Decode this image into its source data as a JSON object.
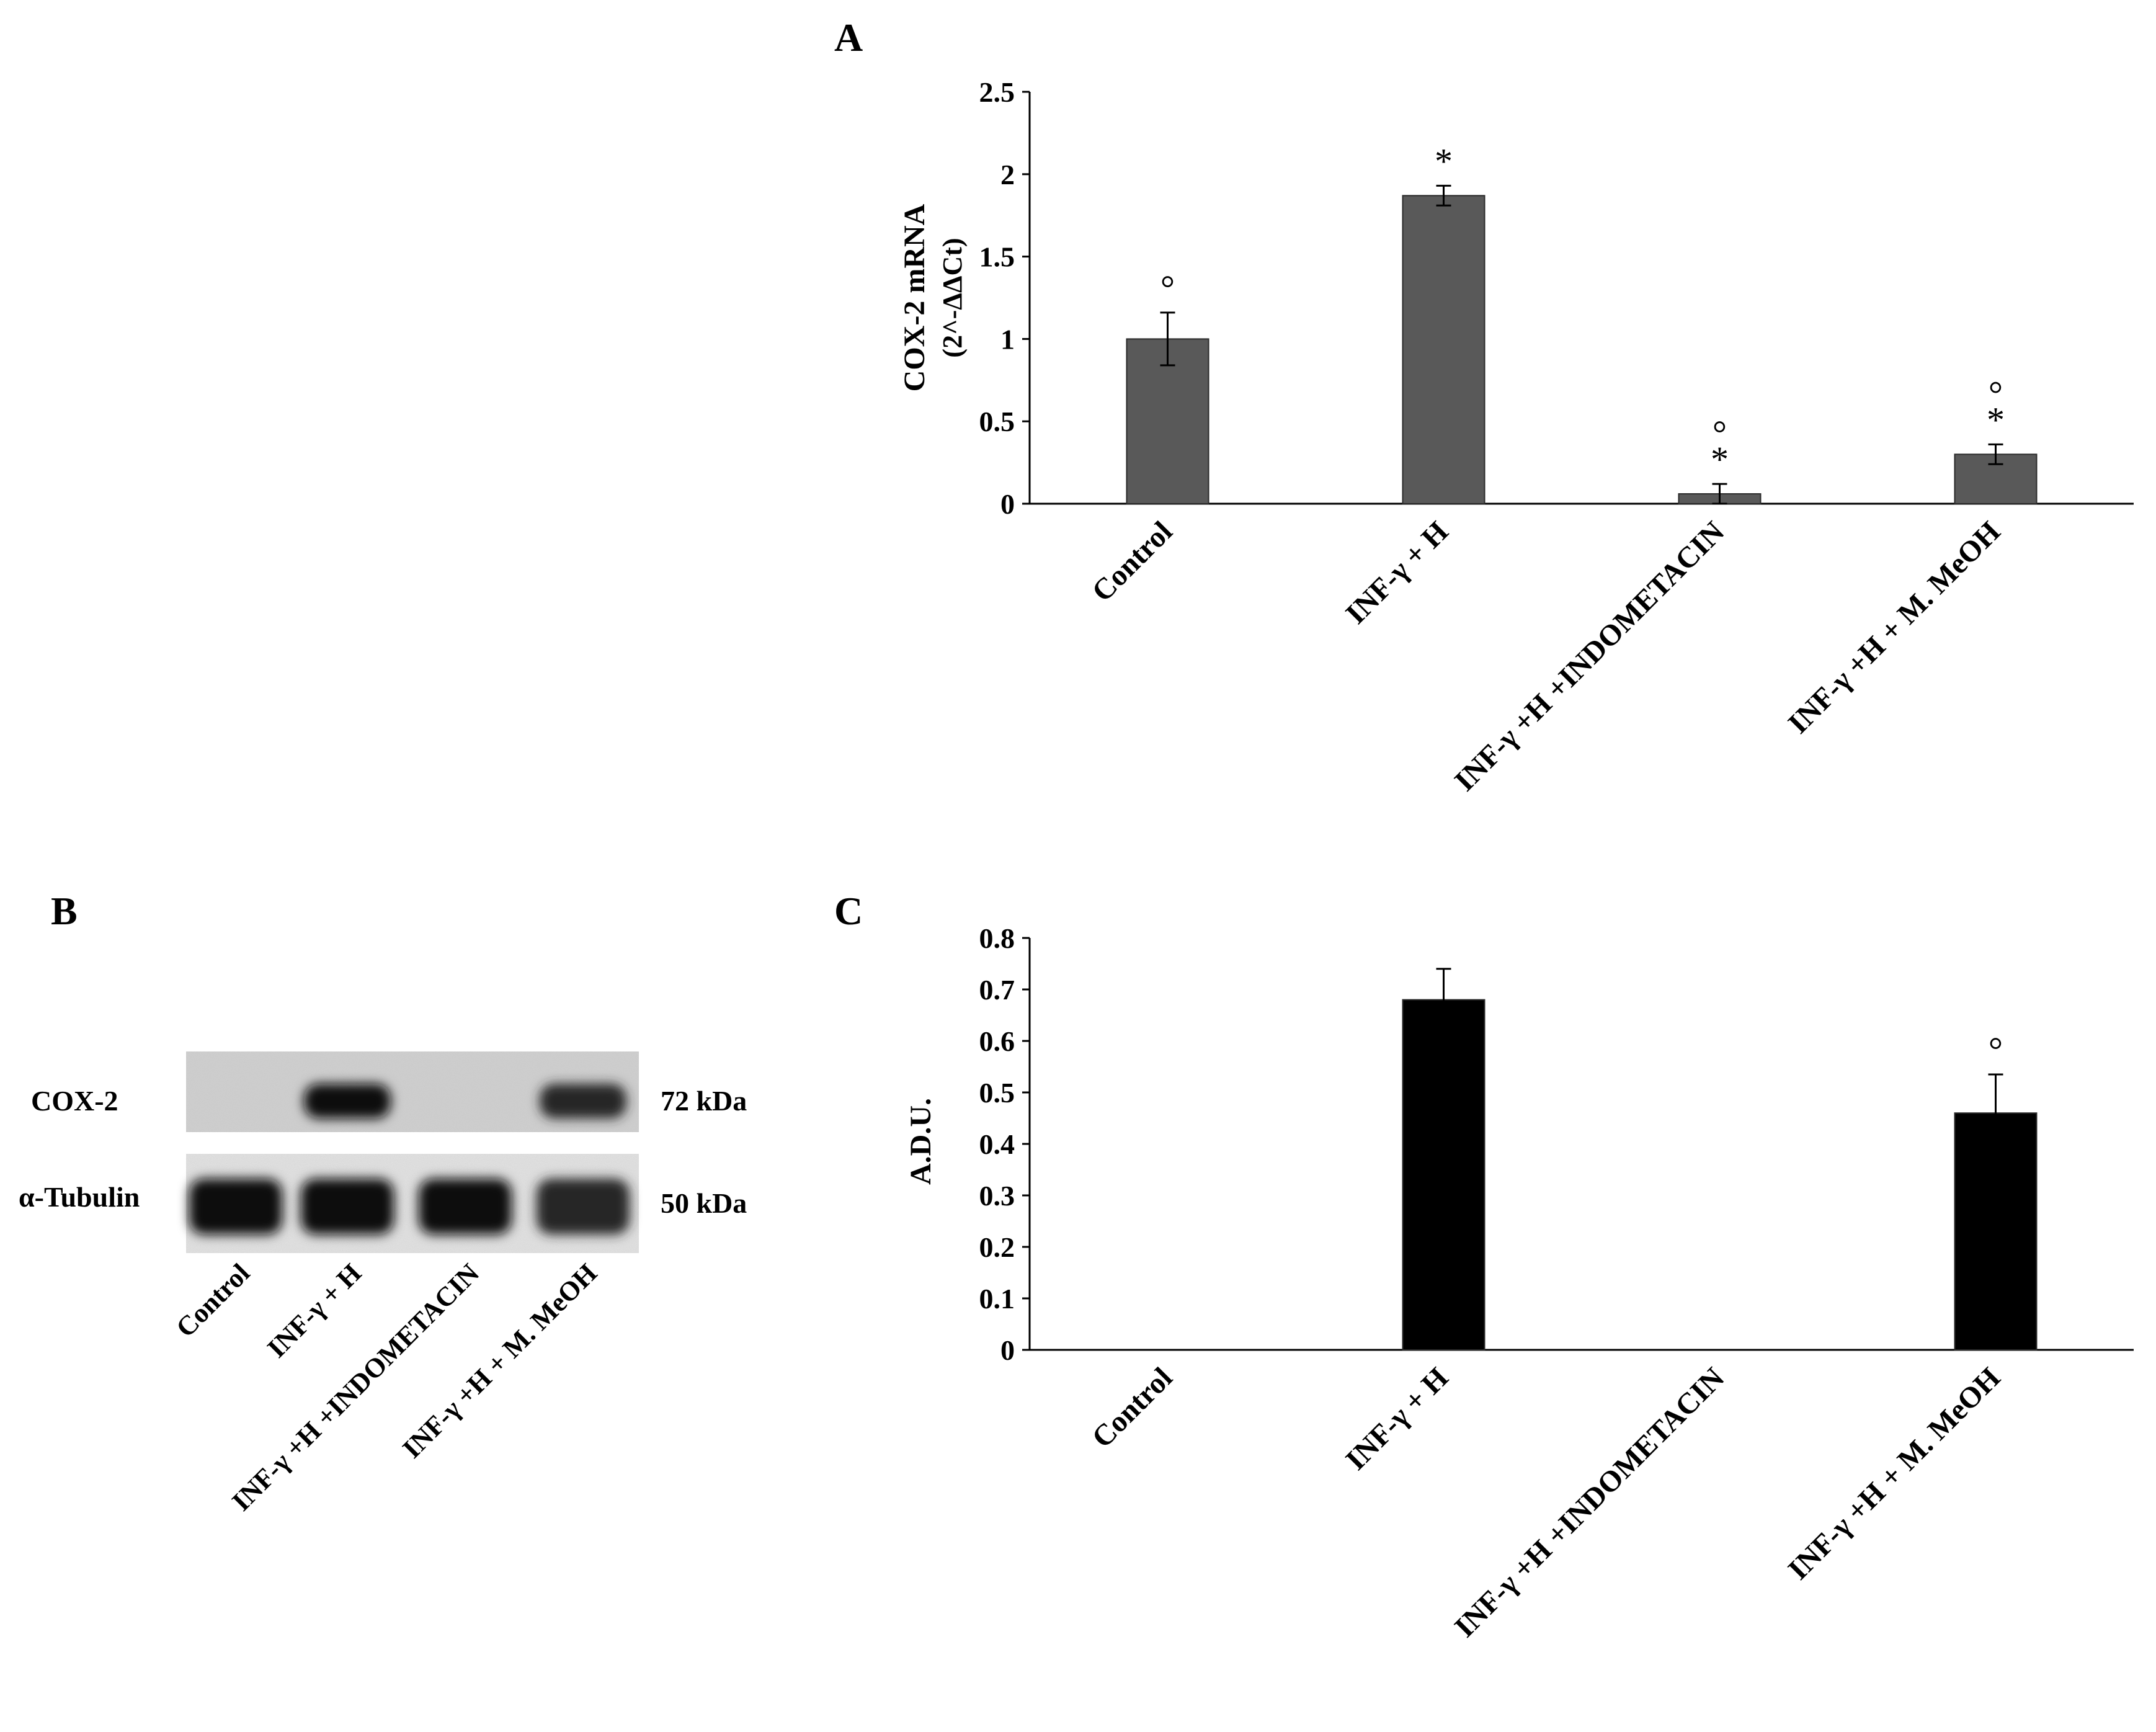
{
  "panels": {
    "a": "A",
    "b": "B",
    "c": "C"
  },
  "colors": {
    "bar_a": "#595959",
    "bar_c": "#000000",
    "axis": "#000000"
  },
  "chart_data": [
    {
      "panel": "A",
      "type": "bar",
      "ylabel_line1": "COX-2  mRNA",
      "ylabel_line2": "(2^-ΔΔCt)",
      "xlabel": "",
      "categories": [
        "Control",
        "INF-γ + H",
        "INF-γ +H +INDOMETACIN",
        "INF-γ +H + M. MeOH"
      ],
      "values": [
        1.0,
        1.87,
        0.06,
        0.3
      ],
      "errors": [
        0.16,
        0.06,
        0.06,
        0.06
      ],
      "annotations": [
        "°",
        "*",
        "°\n*",
        "°\n*"
      ],
      "ylim": [
        0,
        2.5
      ],
      "yticks": [
        "0",
        "0.5",
        "1",
        "1.5",
        "2",
        "2.5"
      ],
      "ytick_values": [
        0,
        0.5,
        1,
        1.5,
        2,
        2.5
      ],
      "grid": false,
      "legend": "none"
    },
    {
      "panel": "C",
      "type": "bar",
      "ylabel": "A.D.U.",
      "xlabel": "",
      "categories": [
        "Control",
        "INF-γ + H",
        "INF-γ +H +INDOMETACIN",
        "INF-γ +H + M. MeOH"
      ],
      "values": [
        0.0,
        0.68,
        0.0,
        0.46
      ],
      "errors": [
        0.0,
        0.06,
        0.0,
        0.075
      ],
      "annotations": [
        "",
        "",
        "",
        "°"
      ],
      "ylim": [
        0,
        0.8
      ],
      "yticks": [
        "0",
        "0.1",
        "0.2",
        "0.3",
        "0.4",
        "0.5",
        "0.6",
        "0.7",
        "0.8"
      ],
      "ytick_values": [
        0,
        0.1,
        0.2,
        0.3,
        0.4,
        0.5,
        0.6,
        0.7,
        0.8
      ],
      "grid": false,
      "legend": "none"
    }
  ],
  "blot": {
    "rows": [
      {
        "label": "COX-2",
        "size": "72 kDa",
        "band_intensity": [
          0.05,
          0.95,
          0.05,
          0.85
        ]
      },
      {
        "label": "α-Tubulin",
        "size": "50 kDa",
        "band_intensity": [
          0.95,
          0.95,
          0.95,
          0.85
        ]
      }
    ],
    "lanes": [
      "Control",
      "INF-γ + H",
      "INF-γ +H +INDOMETACIN",
      "INF-γ +H + M. MeOH"
    ]
  }
}
